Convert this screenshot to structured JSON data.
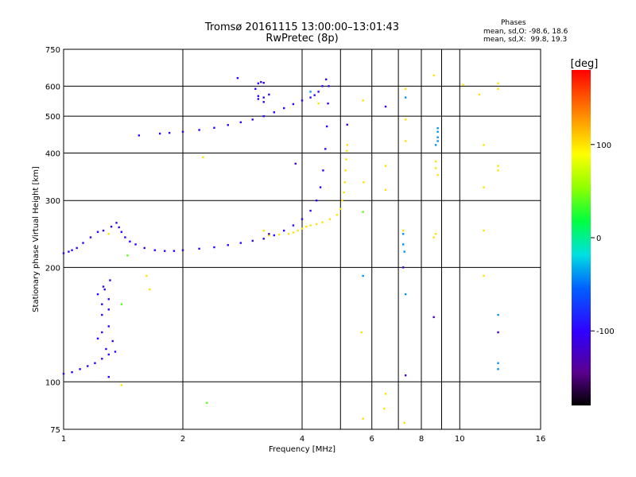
{
  "stats": {
    "heading": "Phases",
    "line_o": "mean, sd,O: -98.6, 18.6",
    "line_x": "mean, sd,X:  99.8, 19.3"
  },
  "chart_data": {
    "type": "scatter",
    "title": "Tromsø 20161115 13:00:00–13:01:43",
    "subtitle": "RwPretec (8p)",
    "xlabel": "Frequency [MHz]",
    "ylabel": "Stationary phase Virtual Height [km]",
    "xscale": "log",
    "yscale": "log",
    "xlim": [
      1,
      16
    ],
    "ylim": [
      75,
      750
    ],
    "xticks": [
      1,
      2,
      4,
      6,
      8,
      10,
      16
    ],
    "yticks": [
      75,
      100,
      200,
      300,
      400,
      500,
      600,
      750
    ],
    "grid": true,
    "colorbar": {
      "label": "[deg]",
      "range": [
        -180,
        180
      ],
      "ticks": [
        100,
        0,
        -100
      ]
    },
    "series": [
      {
        "mode": "O",
        "phase_deg": -100,
        "points": [
          [
            1.0,
            218
          ],
          [
            1.03,
            220
          ],
          [
            1.05,
            222
          ],
          [
            1.08,
            225
          ],
          [
            1.12,
            232
          ],
          [
            1.17,
            240
          ],
          [
            1.22,
            248
          ],
          [
            1.26,
            250
          ],
          [
            1.32,
            256
          ],
          [
            1.36,
            262
          ],
          [
            1.38,
            255
          ],
          [
            1.4,
            248
          ],
          [
            1.43,
            240
          ],
          [
            1.47,
            234
          ],
          [
            1.52,
            230
          ],
          [
            1.6,
            225
          ],
          [
            1.7,
            222
          ],
          [
            1.8,
            221
          ],
          [
            1.9,
            221
          ],
          [
            2.0,
            222
          ],
          [
            2.2,
            224
          ],
          [
            2.4,
            226
          ],
          [
            2.6,
            229
          ],
          [
            2.8,
            232
          ],
          [
            3.0,
            235
          ],
          [
            3.2,
            238
          ],
          [
            3.4,
            243
          ],
          [
            3.6,
            250
          ],
          [
            3.8,
            258
          ],
          [
            4.0,
            268
          ],
          [
            4.2,
            282
          ],
          [
            4.35,
            300
          ],
          [
            4.45,
            325
          ],
          [
            4.52,
            360
          ],
          [
            4.58,
            410
          ],
          [
            4.62,
            470
          ],
          [
            4.65,
            540
          ],
          [
            4.67,
            600
          ],
          [
            4.6,
            625
          ],
          [
            4.5,
            600
          ],
          [
            4.4,
            580
          ],
          [
            4.3,
            568
          ],
          [
            4.2,
            560
          ],
          [
            4.0,
            550
          ],
          [
            3.8,
            538
          ],
          [
            3.6,
            525
          ],
          [
            3.4,
            512
          ],
          [
            3.2,
            500
          ],
          [
            3.0,
            490
          ],
          [
            2.8,
            482
          ],
          [
            2.6,
            474
          ],
          [
            2.4,
            466
          ],
          [
            2.2,
            460
          ],
          [
            2.0,
            455
          ],
          [
            1.85,
            452
          ],
          [
            1.75,
            450
          ],
          [
            1.55,
            445
          ],
          [
            3.05,
            590
          ],
          [
            3.1,
            610
          ],
          [
            3.15,
            615
          ],
          [
            3.2,
            612
          ],
          [
            2.75,
            630
          ],
          [
            3.1,
            565
          ],
          [
            3.2,
            560
          ],
          [
            3.3,
            570
          ],
          [
            3.1,
            555
          ],
          [
            3.2,
            545
          ],
          [
            1.0,
            105
          ],
          [
            1.05,
            106
          ],
          [
            1.1,
            108
          ],
          [
            1.15,
            110
          ],
          [
            1.2,
            112
          ],
          [
            1.25,
            115
          ],
          [
            1.3,
            118
          ],
          [
            1.25,
            135
          ],
          [
            1.3,
            140
          ],
          [
            1.25,
            150
          ],
          [
            1.3,
            155
          ],
          [
            1.25,
            160
          ],
          [
            1.3,
            165
          ],
          [
            1.22,
            170
          ],
          [
            1.27,
            175
          ],
          [
            1.22,
            130
          ],
          [
            1.33,
            128
          ],
          [
            1.28,
            122
          ],
          [
            1.35,
            120
          ],
          [
            1.3,
            103
          ],
          [
            1.26,
            178
          ],
          [
            1.31,
            185
          ]
        ]
      },
      {
        "mode": "X",
        "phase_deg": 100,
        "points": [
          [
            3.7,
            245
          ],
          [
            3.8,
            247
          ],
          [
            3.9,
            250
          ],
          [
            4.0,
            253
          ],
          [
            4.1,
            256
          ],
          [
            4.2,
            258
          ],
          [
            4.35,
            260
          ],
          [
            4.5,
            263
          ],
          [
            4.7,
            268
          ],
          [
            4.9,
            275
          ],
          [
            5.0,
            285
          ],
          [
            5.05,
            300
          ],
          [
            5.1,
            315
          ],
          [
            5.13,
            335
          ],
          [
            5.15,
            360
          ],
          [
            5.17,
            385
          ],
          [
            5.19,
            405
          ],
          [
            5.2,
            420
          ],
          [
            3.5,
            244
          ],
          [
            3.3,
            243
          ],
          [
            1.3,
            245
          ],
          [
            1.65,
            175
          ],
          [
            1.62,
            190
          ],
          [
            2.25,
            390
          ],
          [
            4.4,
            540
          ],
          [
            3.2,
            250
          ]
        ]
      },
      {
        "mode": "scattered",
        "phase_deg": 100,
        "points": [
          [
            5.7,
            550
          ],
          [
            5.72,
            335
          ],
          [
            6.5,
            370
          ],
          [
            6.5,
            320
          ],
          [
            6.45,
            85
          ],
          [
            6.5,
            93
          ],
          [
            7.3,
            590
          ],
          [
            7.3,
            490
          ],
          [
            7.3,
            430
          ],
          [
            7.2,
            250
          ],
          [
            7.25,
            78
          ],
          [
            8.6,
            640
          ],
          [
            8.7,
            380
          ],
          [
            8.7,
            365
          ],
          [
            8.8,
            350
          ],
          [
            8.7,
            245
          ],
          [
            8.6,
            240
          ],
          [
            10.2,
            605
          ],
          [
            11.2,
            570
          ],
          [
            11.5,
            420
          ],
          [
            11.5,
            325
          ],
          [
            11.5,
            250
          ],
          [
            12.5,
            610
          ],
          [
            12.5,
            590
          ],
          [
            12.5,
            370
          ],
          [
            12.5,
            360
          ],
          [
            11.5,
            190
          ],
          [
            5.7,
            80
          ],
          [
            5.65,
            135
          ],
          [
            1.4,
            98
          ]
        ]
      },
      {
        "mode": "scattered",
        "phase_deg": -40,
        "points": [
          [
            8.8,
            465
          ],
          [
            8.8,
            455
          ],
          [
            8.8,
            440
          ],
          [
            8.8,
            430
          ],
          [
            8.7,
            420
          ],
          [
            7.3,
            560
          ],
          [
            7.2,
            245
          ],
          [
            7.2,
            230
          ],
          [
            7.25,
            220
          ],
          [
            7.3,
            170
          ],
          [
            12.5,
            150
          ],
          [
            12.5,
            112
          ],
          [
            12.5,
            108
          ],
          [
            5.7,
            190
          ],
          [
            4.2,
            580
          ]
        ]
      },
      {
        "mode": "scattered",
        "phase_deg": -120,
        "points": [
          [
            6.5,
            530
          ],
          [
            5.2,
            475
          ],
          [
            7.2,
            200
          ],
          [
            7.3,
            104
          ],
          [
            8.6,
            148
          ],
          [
            12.5,
            135
          ],
          [
            3.85,
            375
          ],
          [
            3.3,
            245
          ]
        ]
      },
      {
        "mode": "scattered",
        "phase_deg": 40,
        "points": [
          [
            1.4,
            160
          ],
          [
            1.45,
            215
          ],
          [
            2.3,
            88
          ],
          [
            5.7,
            280
          ]
        ]
      }
    ]
  }
}
